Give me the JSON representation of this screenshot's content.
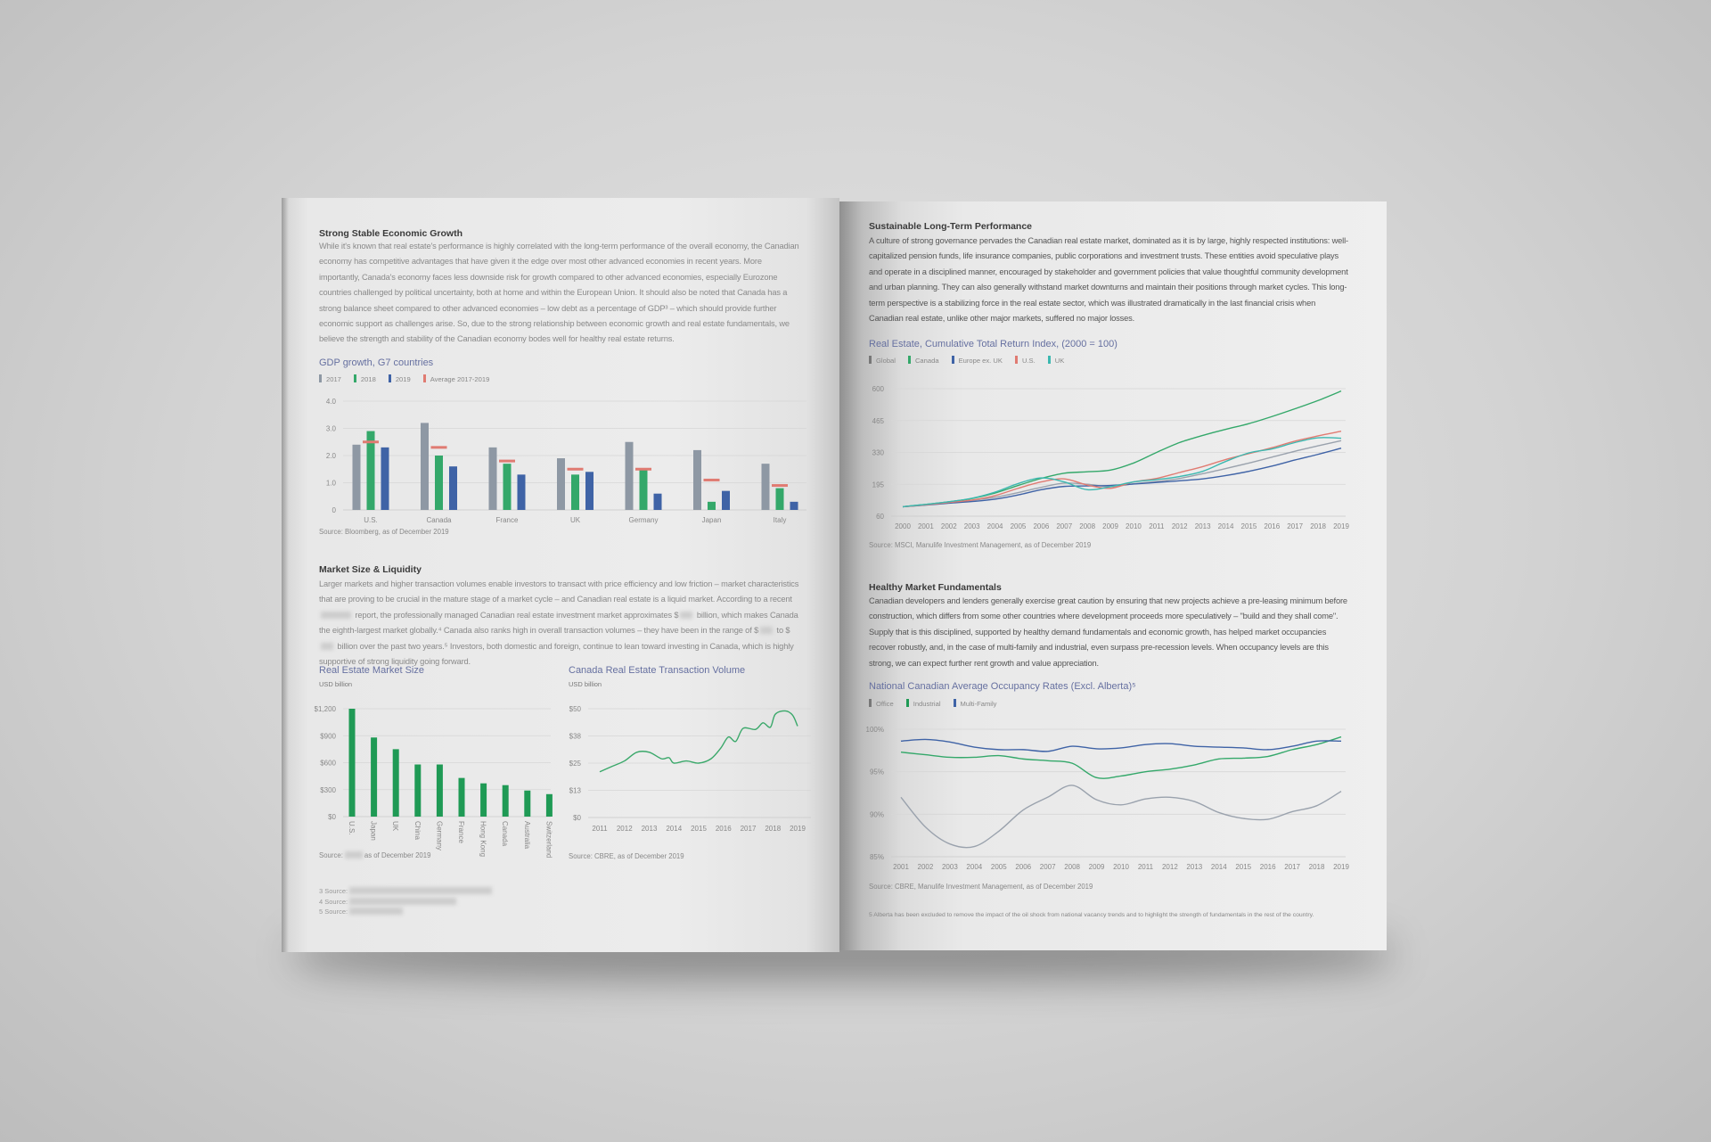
{
  "left_page": {
    "section1": {
      "heading": "Strong Stable Economic Growth",
      "paragraph": "While it's known that real estate's performance is highly correlated with the long-term performance of the overall economy, the Canadian economy has competitive advantages that have given it the edge over most other advanced economies in recent years. More importantly, Canada's economy faces less downside risk for growth compared to other advanced economies, especially Eurozone countries challenged by political uncertainty, both at home and within the European Union. It should also be noted that Canada has a strong balance sheet compared to other advanced economies – low debt as a percentage of GDP³ – which should provide further economic support as challenges arise. So, due to the strong relationship between economic growth and real estate fundamentals, we believe the strength and stability of the Canadian economy bodes well for healthy real estate returns."
    },
    "section2": {
      "heading": "Market Size & Liquidity",
      "p1": "Larger markets and higher transaction volumes enable investors to transact with price efficiency and low friction – market characteristics that are proving to be crucial in the mature stage of a market cycle – and Canadian real estate is a liquid market. According to a recent ",
      "p2": " report, the professionally managed Canadian real estate investment market approximates $",
      "p3": " billion, which makes Canada the eighth-largest market globally.⁴ Canada also ranks high in overall transaction volumes – they have been in the range of $",
      "p4": " to $",
      "p5": " billion over the past two years.⁵ Investors, both domestic and foreign, continue to lean toward investing in Canada, which is highly supportive of strong liquidity going forward."
    },
    "market_size_source_prefix": "Source:",
    "market_size_source_suffix": "as of December 2019",
    "footnotes": [
      "3 Source:",
      "4 Source:",
      "5 Source:"
    ]
  },
  "right_page": {
    "section1": {
      "heading": "Sustainable Long-Term Performance",
      "paragraph": "A culture of strong governance pervades the Canadian real estate market, dominated as it is by large, highly respected institutions: well-capitalized pension funds, life insurance companies, public corporations and investment trusts. These entities avoid speculative plays and operate in a disciplined manner, encouraged by stakeholder and government policies that value thoughtful community development and urban planning. They can also generally withstand market downturns and maintain their positions through market cycles. This long-term perspective is a stabilizing force in the real estate sector, which was illustrated dramatically in the last financial crisis when Canadian real estate, unlike other major markets, suffered no major losses."
    },
    "section2": {
      "heading": "Healthy Market Fundamentals",
      "paragraph": "Canadian developers and lenders generally exercise great caution by ensuring that new projects achieve a pre-leasing minimum before construction, which differs from some other countries where development proceeds more speculatively – \"build and they shall come\". Supply that is this disciplined, supported by healthy demand fundamentals and economic growth, has helped market occupancies recover robustly, and, in the case of multi-family and industrial, even surpass pre-recession levels. When occupancy levels are this strong, we can expect further rent growth and value appreciation."
    },
    "footnote": "5 Alberta has been excluded to remove the impact of the oil shock from national vacancy trends and to highlight the strength of fundamentals in the rest of the country."
  },
  "chart_data": [
    {
      "id": "gdp",
      "type": "bar",
      "title": "GDP growth, G7 countries",
      "source": "Source: Bloomberg, as of December 2019",
      "categories": [
        "U.S.",
        "Canada",
        "France",
        "UK",
        "Germany",
        "Japan",
        "Italy"
      ],
      "yticks": [
        "0",
        "1.0",
        "2.0",
        "3.0",
        "4.0"
      ],
      "ylim": [
        0,
        4
      ],
      "grid": true,
      "legend": "top-left",
      "series": [
        {
          "name": "2017",
          "color": "#8e98a4",
          "values": [
            2.4,
            3.2,
            2.3,
            1.9,
            2.5,
            2.2,
            1.7
          ]
        },
        {
          "name": "2018",
          "color": "#34a86a",
          "values": [
            2.9,
            2.0,
            1.7,
            1.3,
            1.5,
            0.3,
            0.8
          ]
        },
        {
          "name": "2019",
          "color": "#3f63a6",
          "values": [
            2.3,
            1.6,
            1.3,
            1.4,
            0.6,
            0.7,
            0.3
          ]
        },
        {
          "name": "Average 2017-2019",
          "color": "#e07b72",
          "values": [
            2.5,
            2.3,
            1.8,
            1.5,
            1.5,
            1.1,
            0.9
          ]
        }
      ]
    },
    {
      "id": "size",
      "type": "bar",
      "title": "Real Estate Market Size",
      "ylabel": "USD billion",
      "categories": [
        "U.S.",
        "Japan",
        "UK",
        "China",
        "Germany",
        "France",
        "Hong Kong",
        "Canada",
        "Australia",
        "Switzerland"
      ],
      "values": [
        1200,
        880,
        750,
        580,
        580,
        430,
        370,
        350,
        290,
        250
      ],
      "color": "#1f9a55",
      "yticks": [
        "$0",
        "$300",
        "$600",
        "$900",
        "$1,200"
      ],
      "ylim": [
        0,
        1200
      ],
      "grid": true
    },
    {
      "id": "volume",
      "type": "line",
      "title": "Canada Real Estate Transaction Volume",
      "ylabel": "USD billion",
      "source": "Source: CBRE, as of December 2019",
      "x": [
        2011,
        2011.5,
        2012,
        2012.5,
        2013,
        2013.5,
        2013.8,
        2014,
        2014.5,
        2015,
        2015.5,
        2015.9,
        2016.2,
        2016.5,
        2016.8,
        2017.3,
        2017.6,
        2017.9,
        2018.1,
        2018.5,
        2018.8,
        2019
      ],
      "values": [
        21,
        23.5,
        26,
        30,
        30,
        27,
        27.5,
        25,
        26,
        25,
        27,
        32,
        37,
        35,
        41,
        40.5,
        43.5,
        41.5,
        47.5,
        49,
        47,
        42
      ],
      "color": "#3aa86a",
      "xticks": [
        "2011",
        "2012",
        "2013",
        "2014",
        "2015",
        "2016",
        "2017",
        "2018",
        "2019"
      ],
      "yticks": [
        "$0",
        "$13",
        "$25",
        "$38",
        "$50"
      ],
      "ylim": [
        0,
        50
      ],
      "xlim": [
        2011,
        2019
      ],
      "grid": true
    },
    {
      "id": "returns",
      "type": "line",
      "title": "Real Estate, Cumulative Total Return Index, (2000 = 100)",
      "source": "Source: MSCI, Manulife Investment Management, as of December 2019",
      "x": [
        2000,
        2001,
        2002,
        2003,
        2004,
        2005,
        2006,
        2007,
        2008,
        2009,
        2010,
        2011,
        2012,
        2013,
        2014,
        2015,
        2016,
        2017,
        2018,
        2019
      ],
      "xticks": [
        "2000",
        "2001",
        "2002",
        "2003",
        "2004",
        "2005",
        "2006",
        "2007",
        "2008",
        "2009",
        "2010",
        "2011",
        "2012",
        "2013",
        "2014",
        "2015",
        "2016",
        "2017",
        "2018",
        "2019"
      ],
      "yticks": [
        "60",
        "195",
        "330",
        "465",
        "600"
      ],
      "ylim": [
        60,
        600
      ],
      "xlim": [
        2000,
        2019
      ],
      "grid": true,
      "legend": "top-left",
      "series": [
        {
          "name": "Global",
          "color": "#9aa2ad",
          "values": [
            100,
            108,
            117,
            127,
            140,
            160,
            182,
            200,
            195,
            185,
            197,
            207,
            220,
            240,
            262,
            285,
            310,
            335,
            358,
            380
          ]
        },
        {
          "name": "Canada",
          "color": "#34a86a",
          "values": [
            100,
            110,
            121,
            135,
            158,
            190,
            220,
            242,
            248,
            255,
            285,
            330,
            372,
            402,
            428,
            452,
            482,
            515,
            550,
            590
          ]
        },
        {
          "name": "Europe ex. UK",
          "color": "#3f63a6",
          "values": [
            100,
            107,
            115,
            122,
            132,
            150,
            172,
            186,
            188,
            190,
            196,
            203,
            210,
            218,
            232,
            250,
            272,
            298,
            322,
            348
          ]
        },
        {
          "name": "U.S.",
          "color": "#e07b72",
          "values": [
            100,
            108,
            118,
            128,
            147,
            178,
            205,
            218,
            192,
            178,
            205,
            220,
            245,
            270,
            300,
            325,
            350,
            378,
            400,
            420
          ]
        },
        {
          "name": "UK",
          "color": "#3cb8b0",
          "values": [
            100,
            110,
            121,
            136,
            162,
            198,
            222,
            205,
            172,
            185,
            205,
            215,
            228,
            250,
            292,
            328,
            345,
            372,
            392,
            390
          ]
        }
      ]
    },
    {
      "id": "occupancy",
      "type": "line",
      "title": "National Canadian Average Occupancy Rates (Excl. Alberta)⁵",
      "source": "Source: CBRE, Manulife Investment Management, as of December 2019",
      "x": [
        2001,
        2002,
        2003,
        2004,
        2005,
        2006,
        2007,
        2008,
        2009,
        2010,
        2011,
        2012,
        2013,
        2014,
        2015,
        2016,
        2017,
        2018,
        2019
      ],
      "xticks": [
        "2001",
        "2002",
        "2003",
        "2004",
        "2005",
        "2006",
        "2007",
        "2008",
        "2009",
        "2010",
        "2011",
        "2012",
        "2013",
        "2014",
        "2015",
        "2016",
        "2017",
        "2018",
        "2019"
      ],
      "yticks": [
        "85%",
        "90%",
        "95%",
        "100%"
      ],
      "ylim": [
        85,
        100
      ],
      "xlim": [
        2001,
        2019
      ],
      "grid": true,
      "legend": "top-left",
      "series": [
        {
          "name": "Office",
          "color": "#9aa2ad",
          "values": [
            92,
            88.5,
            86.5,
            86.2,
            88,
            90.5,
            92,
            93.4,
            91.7,
            91.1,
            91.8,
            92,
            91.5,
            90.2,
            89.5,
            89.4,
            90.3,
            91,
            92.7
          ]
        },
        {
          "name": "Industrial",
          "color": "#34a86a",
          "values": [
            97.3,
            97,
            96.7,
            96.7,
            96.9,
            96.5,
            96.3,
            96,
            94.3,
            94.5,
            95,
            95.3,
            95.8,
            96.5,
            96.6,
            96.8,
            97.6,
            98.2,
            99.1
          ]
        },
        {
          "name": "Multi-Family",
          "color": "#3f63a6",
          "values": [
            98.6,
            98.8,
            98.5,
            97.9,
            97.6,
            97.6,
            97.4,
            98,
            97.7,
            97.8,
            98.2,
            98.3,
            98,
            97.9,
            97.8,
            97.6,
            98,
            98.6,
            98.6
          ]
        }
      ]
    }
  ]
}
